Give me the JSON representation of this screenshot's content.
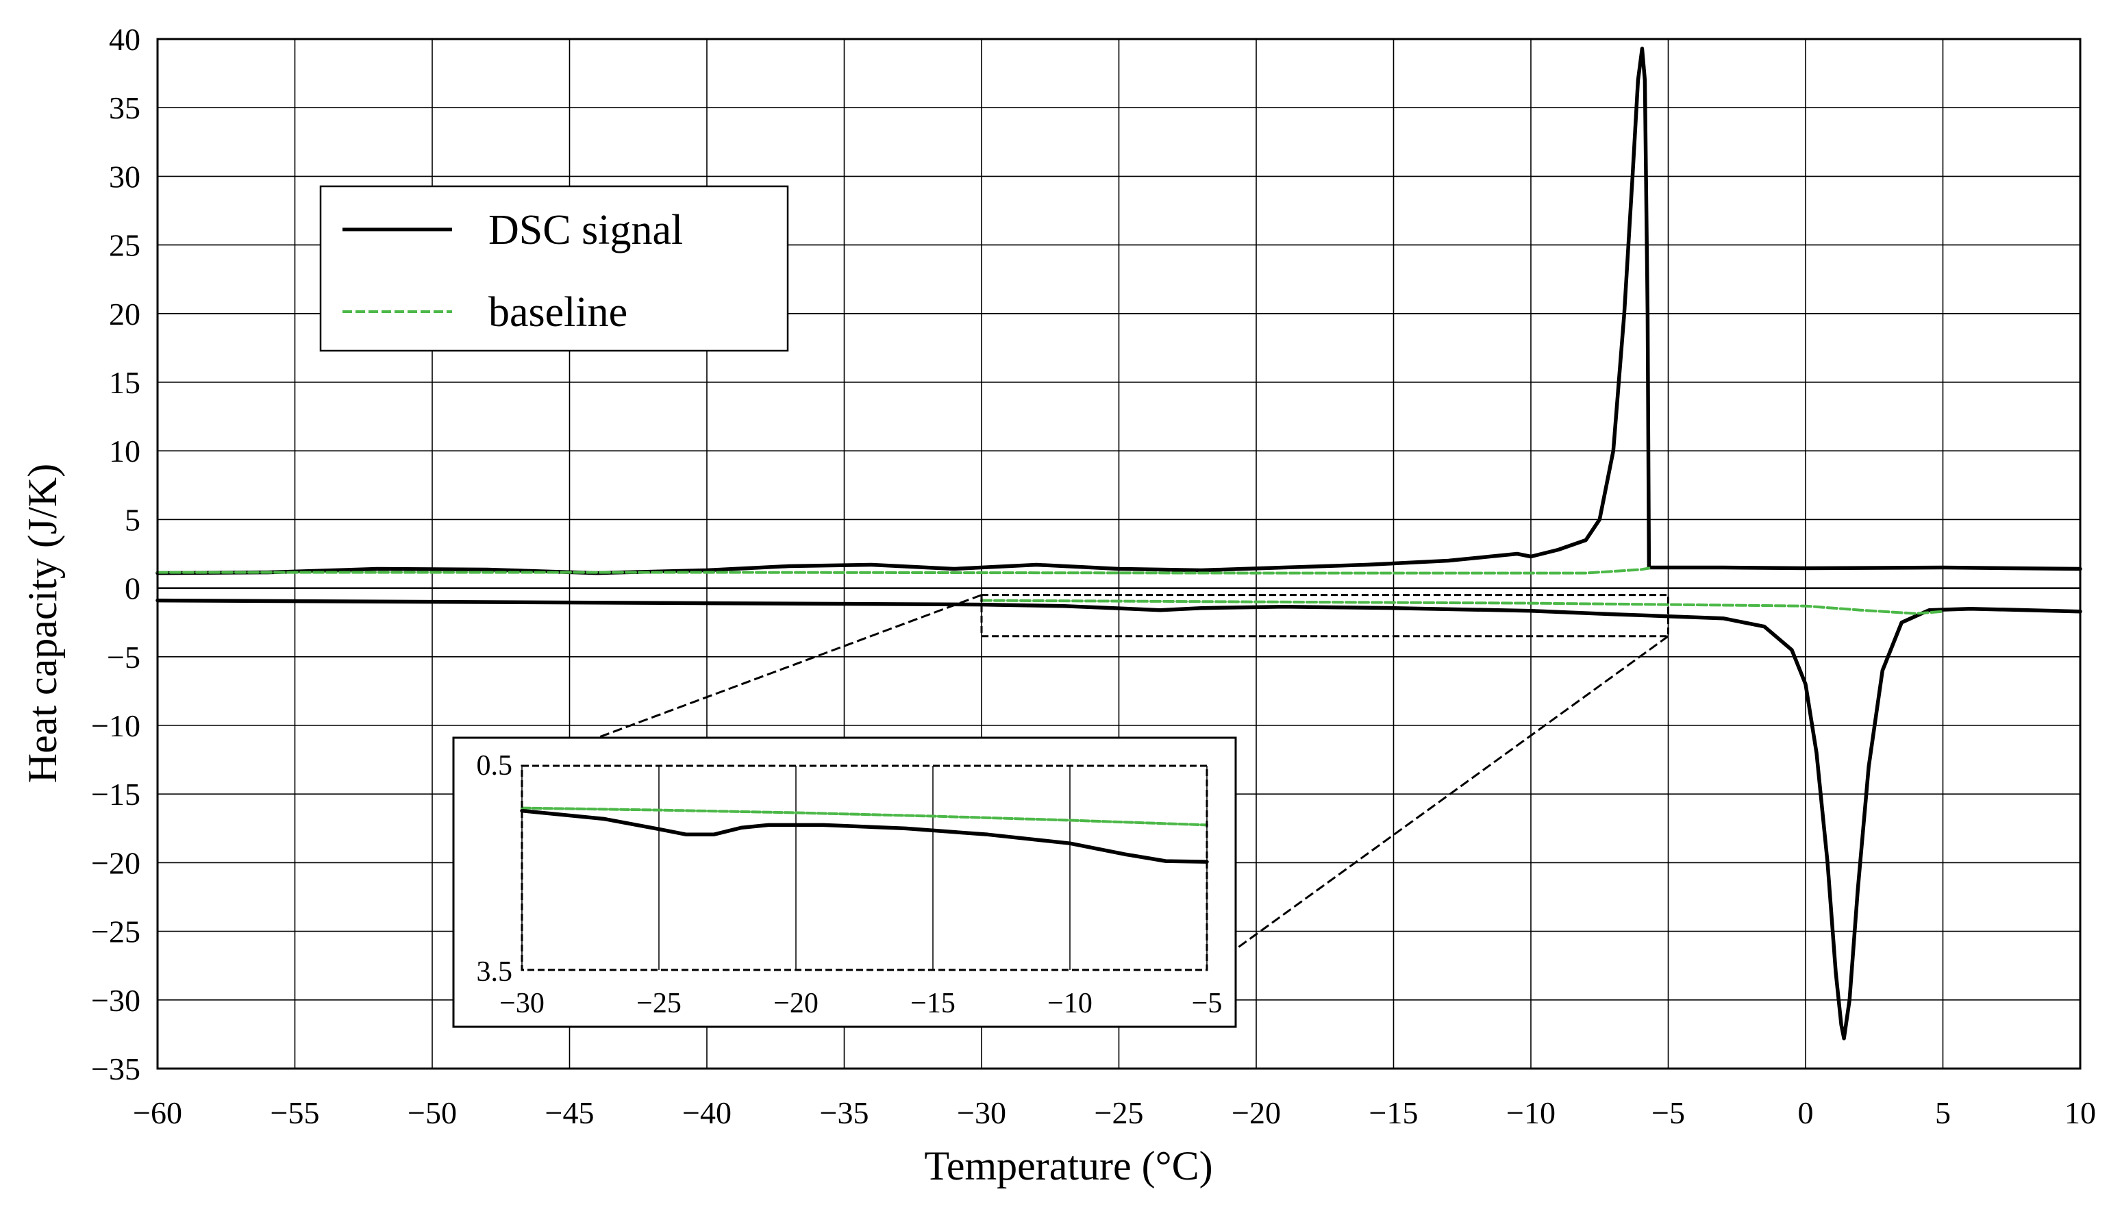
{
  "chart_data": {
    "type": "line",
    "xlabel": "Temperature (°C)",
    "ylabel": "Heat capacity (J/K)",
    "xlim": [
      -60,
      10
    ],
    "ylim": [
      -35,
      40
    ],
    "x_ticks": [
      -60,
      -55,
      -50,
      -45,
      -40,
      -35,
      -30,
      -25,
      -20,
      -15,
      -10,
      -5,
      0,
      5,
      10
    ],
    "y_ticks": [
      40,
      35,
      30,
      25,
      20,
      15,
      10,
      5,
      0,
      -5,
      -10,
      -15,
      -20,
      -25,
      -30,
      -35
    ],
    "grid": true,
    "legend": {
      "position": "top-left",
      "entries": [
        {
          "label": "DSC signal",
          "color": "#000000",
          "style": "solid"
        },
        {
          "label": "baseline",
          "color": "#4cb848",
          "style": "dashed"
        }
      ]
    },
    "series": [
      {
        "name": "DSC signal",
        "segment": "cooling",
        "color": "#000000",
        "points": [
          [
            -60,
            1.1
          ],
          [
            -56,
            1.15
          ],
          [
            -52,
            1.4
          ],
          [
            -48,
            1.35
          ],
          [
            -44,
            1.1
          ],
          [
            -40,
            1.3
          ],
          [
            -37,
            1.6
          ],
          [
            -34,
            1.7
          ],
          [
            -31,
            1.4
          ],
          [
            -28,
            1.7
          ],
          [
            -25,
            1.4
          ],
          [
            -22,
            1.3
          ],
          [
            -19,
            1.5
          ],
          [
            -16,
            1.7
          ],
          [
            -13,
            2.0
          ],
          [
            -11.5,
            2.3
          ],
          [
            -10.5,
            2.5
          ],
          [
            -10,
            2.3
          ],
          [
            -9,
            2.8
          ],
          [
            -8,
            3.5
          ],
          [
            -7.5,
            5
          ],
          [
            -7,
            10
          ],
          [
            -6.6,
            20
          ],
          [
            -6.3,
            30
          ],
          [
            -6.1,
            37
          ],
          [
            -5.95,
            39.3
          ],
          [
            -5.85,
            37
          ],
          [
            -5.75,
            20
          ],
          [
            -5.7,
            1.5
          ],
          [
            -3,
            1.5
          ],
          [
            0,
            1.45
          ],
          [
            5,
            1.5
          ],
          [
            10,
            1.4
          ]
        ]
      },
      {
        "name": "DSC signal",
        "segment": "heating",
        "color": "#000000",
        "points": [
          [
            -60,
            -0.9
          ],
          [
            -50,
            -1.0
          ],
          [
            -40,
            -1.1
          ],
          [
            -30,
            -1.2
          ],
          [
            -27,
            -1.3
          ],
          [
            -23.5,
            -1.6
          ],
          [
            -22,
            -1.45
          ],
          [
            -19,
            -1.35
          ],
          [
            -15,
            -1.45
          ],
          [
            -10,
            -1.65
          ],
          [
            -7,
            -1.9
          ],
          [
            -5,
            -2.05
          ],
          [
            -3,
            -2.2
          ],
          [
            -1.5,
            -2.8
          ],
          [
            -0.5,
            -4.5
          ],
          [
            0,
            -7
          ],
          [
            0.4,
            -12
          ],
          [
            0.8,
            -20
          ],
          [
            1.1,
            -28
          ],
          [
            1.3,
            -31.8
          ],
          [
            1.4,
            -32.8
          ],
          [
            1.6,
            -30
          ],
          [
            1.9,
            -22
          ],
          [
            2.3,
            -13
          ],
          [
            2.8,
            -6
          ],
          [
            3.5,
            -2.5
          ],
          [
            4.5,
            -1.6
          ],
          [
            6,
            -1.5
          ],
          [
            10,
            -1.7
          ]
        ]
      },
      {
        "name": "baseline",
        "segment": "cooling",
        "color": "#4cb848",
        "points": [
          [
            -60,
            1.15
          ],
          [
            -40,
            1.15
          ],
          [
            -20,
            1.1
          ],
          [
            -8,
            1.1
          ],
          [
            -6,
            1.35
          ],
          [
            -5.7,
            1.45
          ]
        ]
      },
      {
        "name": "baseline",
        "segment": "heating",
        "color": "#4cb848",
        "points": [
          [
            -30,
            -0.9
          ],
          [
            -20,
            -1.0
          ],
          [
            -10,
            -1.1
          ],
          [
            -5,
            -1.2
          ],
          [
            0,
            -1.3
          ],
          [
            2,
            -1.6
          ],
          [
            4,
            -1.85
          ],
          [
            5,
            -1.7
          ]
        ]
      }
    ],
    "inset": {
      "zoom_region": {
        "x": [
          -30,
          -5
        ],
        "y": [
          -0.5,
          -3.5
        ]
      },
      "xlim": [
        -30,
        -5
      ],
      "ylim_labels": [
        "0.5",
        "3.5"
      ],
      "x_ticks": [
        -30,
        -25,
        -20,
        -15,
        -10,
        -5
      ],
      "y_tick_labels": [
        "0.5",
        "3.5"
      ],
      "series": [
        {
          "name": "baseline",
          "color": "#4cb848",
          "points": [
            [
              -30,
              1.12
            ],
            [
              -25,
              1.15
            ],
            [
              -20,
              1.19
            ],
            [
              -15,
              1.24
            ],
            [
              -10,
              1.3
            ],
            [
              -5,
              1.37
            ]
          ]
        },
        {
          "name": "DSC signal",
          "color": "#000000",
          "points": [
            [
              -30,
              1.16
            ],
            [
              -27,
              1.28
            ],
            [
              -25,
              1.43
            ],
            [
              -24,
              1.51
            ],
            [
              -23,
              1.51
            ],
            [
              -22,
              1.41
            ],
            [
              -21,
              1.37
            ],
            [
              -19,
              1.37
            ],
            [
              -16,
              1.42
            ],
            [
              -13,
              1.51
            ],
            [
              -10,
              1.64
            ],
            [
              -8,
              1.8
            ],
            [
              -6.5,
              1.9
            ],
            [
              -5,
              1.91
            ]
          ]
        }
      ]
    }
  }
}
